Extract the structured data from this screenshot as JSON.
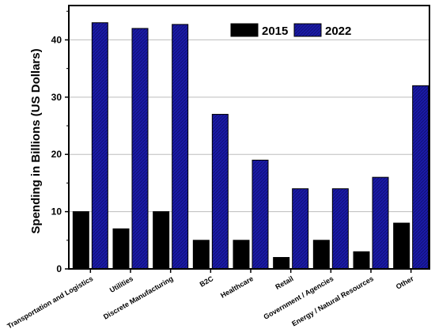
{
  "chart_data": {
    "type": "bar",
    "title": "",
    "xlabel": "",
    "ylabel": "Spending in Billions (US Dollars)",
    "ylim": [
      0,
      46
    ],
    "yticks": [
      0,
      10,
      20,
      30,
      40
    ],
    "grid": "horizontal",
    "legend_position": "top-right",
    "categories": [
      "Transportation and Logistics",
      "Utilities",
      "Discrete Manufacturing",
      "B2C",
      "Healthcare",
      "Retail",
      "Government / Agencies",
      "Energy / Natural Resources",
      "Other"
    ],
    "series": [
      {
        "name": "2015",
        "color": "#000000",
        "values": [
          10,
          7,
          10,
          5,
          5,
          2,
          5,
          3,
          8
        ]
      },
      {
        "name": "2022",
        "color": "#1a1aa6",
        "values": [
          43,
          42,
          42.7,
          27,
          19,
          14,
          14,
          16,
          32
        ]
      }
    ]
  }
}
